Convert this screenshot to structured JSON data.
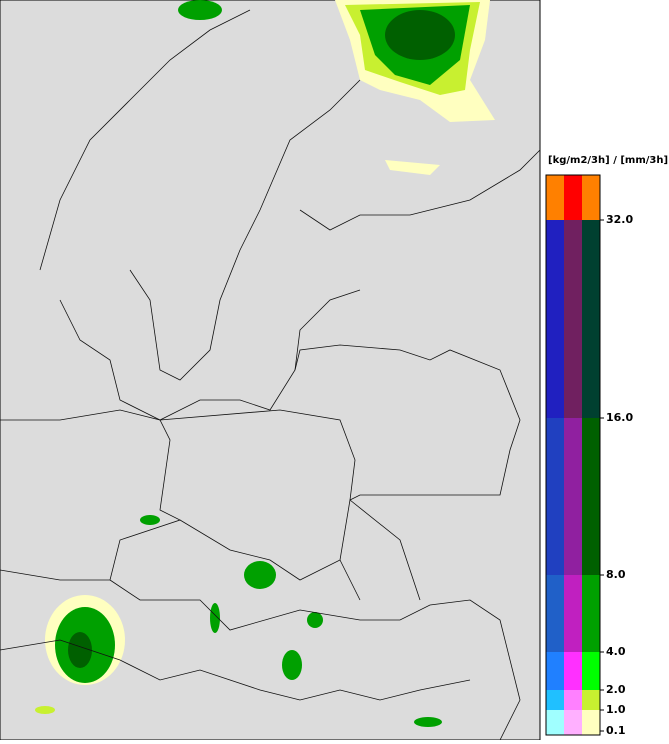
{
  "legend": {
    "title": "[kg/m2/3h] / [mm/3h]",
    "ticks": [
      {
        "value": 0.1,
        "label": "0.1"
      },
      {
        "value": 1,
        "label": "1.0"
      },
      {
        "value": 2,
        "label": "2.0"
      },
      {
        "value": 4,
        "label": "4.0"
      },
      {
        "value": 8,
        "label": "8.0"
      },
      {
        "value": 16,
        "label": "16.0"
      },
      {
        "value": 32,
        "label": "32.0"
      }
    ],
    "bands": [
      {
        "colors": [
          "#a0ffff",
          "#ffb0ff",
          "#ffffc0"
        ]
      },
      {
        "colors": [
          "#20c0ff",
          "#ff80ff",
          "#c8f030"
        ]
      },
      {
        "colors": [
          "#2080ff",
          "#ff30ff",
          "#00ff00"
        ]
      },
      {
        "colors": [
          "#2060c8",
          "#c020c0",
          "#00a000"
        ]
      },
      {
        "colors": [
          "#2040c0",
          "#9020a0",
          "#006000"
        ]
      },
      {
        "colors": [
          "#2020c0",
          "#702060",
          "#004030"
        ]
      },
      {
        "colors": [
          "#ff8000",
          "#ff0000",
          "#ff8000"
        ]
      }
    ]
  }
}
